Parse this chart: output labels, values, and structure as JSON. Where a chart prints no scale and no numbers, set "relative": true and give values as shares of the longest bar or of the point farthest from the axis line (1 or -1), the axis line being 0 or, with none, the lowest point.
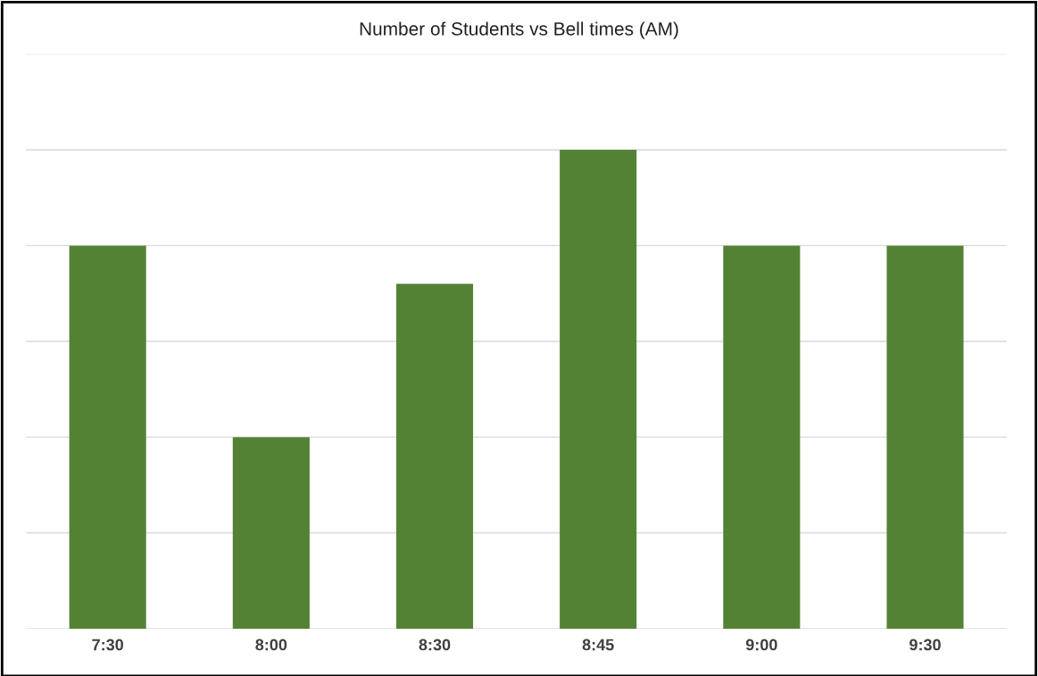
{
  "chart_data": {
    "type": "bar",
    "title": "Number of Students vs Bell times (AM)",
    "categories": [
      "7:30",
      "8:00",
      "8:30",
      "8:45",
      "9:00",
      "9:30"
    ],
    "values": [
      0.8,
      0.4,
      0.72,
      1,
      0.8,
      0.8
    ],
    "color": "#548235",
    "relative": true,
    "grid": "y",
    "legend": false
  }
}
